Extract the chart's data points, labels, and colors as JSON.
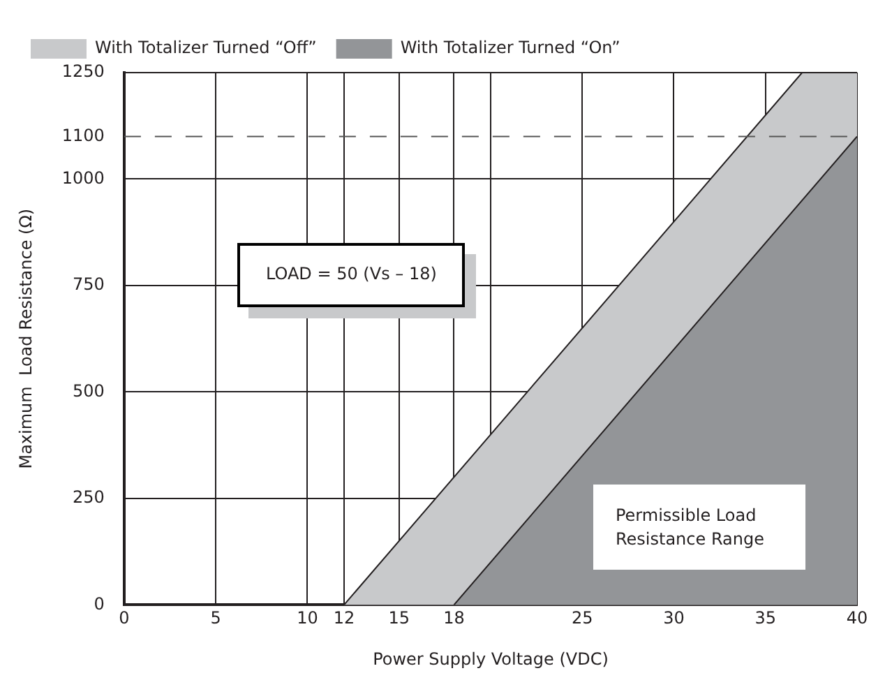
{
  "chart_data": {
    "type": "area",
    "xlabel": "Power Supply Voltage (VDC)",
    "ylabel": "Maximum  Load Resistance (Ω)",
    "series": [
      {
        "name": "With Totalizer Turned “Off”",
        "color": "#c8c9cb",
        "x": [
          12,
          37,
          40
        ],
        "values": [
          0,
          1250,
          1250
        ]
      },
      {
        "name": "With Totalizer Turned “On”",
        "color": "#939598",
        "x": [
          18,
          40
        ],
        "values": [
          0,
          1100
        ]
      }
    ],
    "xlim": [
      0,
      40
    ],
    "xticks": [
      0,
      5,
      10,
      12,
      15,
      18,
      {
        "value": 20,
        "label": null
      },
      25,
      30,
      35,
      40
    ],
    "ylim": [
      0,
      1250
    ],
    "yticks": [
      0,
      250,
      500,
      750,
      1000,
      1100,
      1250
    ],
    "ref_lines": [
      {
        "axis": "y",
        "value": 1100,
        "color": "#555555",
        "line_style": "dashed"
      }
    ],
    "annotations": [
      "LOAD = 50 (Vs – 18)",
      "Permissible Load\nResistance Range"
    ],
    "grid": true,
    "legend": "top left"
  }
}
